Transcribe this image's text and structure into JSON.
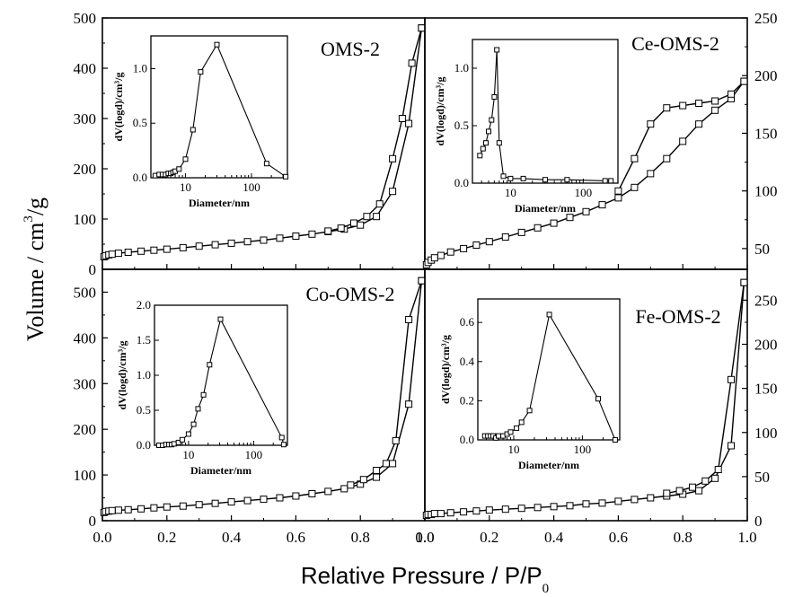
{
  "y_axis_label": {
    "pre": "Volume / cm",
    "sup": "3",
    "post": "/g"
  },
  "x_axis_label": {
    "main": "Relative Pressure / P/P",
    "sub": "0"
  },
  "chart_data": [
    {
      "type": "line",
      "title": "OMS-2",
      "xlim": [
        0,
        1.0
      ],
      "ylim": [
        0,
        500
      ],
      "x_ticks": [
        0.0,
        0.2,
        0.4,
        0.6,
        0.8,
        1.0
      ],
      "y_ticks": [
        0,
        100,
        200,
        300,
        400,
        500
      ],
      "y_axis_side": "left",
      "series": [
        {
          "role": "adsorption",
          "x": [
            0.005,
            0.01,
            0.02,
            0.03,
            0.05,
            0.08,
            0.12,
            0.16,
            0.2,
            0.25,
            0.3,
            0.35,
            0.4,
            0.45,
            0.5,
            0.55,
            0.6,
            0.65,
            0.7,
            0.75,
            0.8,
            0.85,
            0.9,
            0.95,
            0.99
          ],
          "y": [
            25,
            27,
            29,
            30,
            32,
            34,
            36,
            38,
            40,
            43,
            46,
            49,
            52,
            55,
            58,
            62,
            66,
            70,
            75,
            80,
            88,
            105,
            155,
            290,
            480
          ]
        },
        {
          "role": "desorption",
          "x": [
            0.99,
            0.96,
            0.93,
            0.9,
            0.86,
            0.82,
            0.78,
            0.74,
            0.7
          ],
          "y": [
            480,
            410,
            300,
            220,
            130,
            105,
            92,
            82,
            76
          ]
        }
      ],
      "inset": {
        "xlabel": "Diameter/nm",
        "ylabel": "dV(logd)/cm³/g",
        "x_scale": "log",
        "xlim": [
          3,
          350
        ],
        "ylim": [
          0,
          1.3
        ],
        "x_tick_values": [
          10,
          100
        ],
        "x_tick_labels": [
          "10",
          "100"
        ],
        "y_tick_values": [
          0,
          0.5,
          1.0
        ],
        "y_tick_labels": [
          "0.0",
          "0.5",
          "1.0"
        ],
        "x": [
          3.5,
          4,
          4.5,
          5,
          5.5,
          6,
          6.5,
          7,
          8,
          10,
          13,
          17,
          30,
          170,
          330
        ],
        "y": [
          0.02,
          0.03,
          0.03,
          0.03,
          0.04,
          0.04,
          0.05,
          0.06,
          0.08,
          0.17,
          0.44,
          0.97,
          1.22,
          0.13,
          0.01
        ]
      }
    },
    {
      "type": "line",
      "title": "Ce-OMS-2",
      "xlim": [
        0,
        1.0
      ],
      "ylim": [
        32,
        250
      ],
      "x_ticks": [
        0.0,
        0.2,
        0.4,
        0.6,
        0.8,
        1.0
      ],
      "y_ticks": [
        50,
        100,
        150,
        200,
        250
      ],
      "y_axis_side": "right",
      "series": [
        {
          "role": "adsorption",
          "x": [
            0.005,
            0.01,
            0.02,
            0.03,
            0.05,
            0.08,
            0.12,
            0.16,
            0.2,
            0.25,
            0.3,
            0.35,
            0.4,
            0.45,
            0.5,
            0.55,
            0.6,
            0.65,
            0.7,
            0.75,
            0.8,
            0.85,
            0.9,
            0.95,
            0.99
          ],
          "y": [
            36,
            38,
            40,
            42,
            44,
            47,
            50,
            53,
            56,
            60,
            64,
            68,
            72,
            77,
            82,
            88,
            94,
            103,
            115,
            128,
            143,
            158,
            170,
            180,
            195
          ]
        },
        {
          "role": "desorption",
          "x": [
            0.99,
            0.95,
            0.9,
            0.85,
            0.8,
            0.75,
            0.7,
            0.65,
            0.6
          ],
          "y": [
            195,
            184,
            178,
            176,
            174,
            172,
            158,
            128,
            100
          ]
        }
      ],
      "inset": {
        "xlabel": "Diameter/nm",
        "ylabel": "dV(logd)/cm³/g",
        "x_scale": "log",
        "xlim": [
          3,
          300
        ],
        "ylim": [
          0,
          1.25
        ],
        "x_tick_values": [
          10,
          100
        ],
        "x_tick_labels": [
          "10",
          "100"
        ],
        "y_tick_values": [
          0,
          0.5,
          1.0
        ],
        "y_tick_labels": [
          "0.0",
          "0.5",
          "1.0"
        ],
        "x": [
          3.8,
          4.2,
          4.6,
          5,
          5.5,
          6,
          6.5,
          7,
          8,
          10,
          15,
          30,
          60,
          200,
          240
        ],
        "y": [
          0.24,
          0.3,
          0.35,
          0.45,
          0.55,
          0.75,
          1.16,
          0.35,
          0.06,
          0.04,
          0.04,
          0.03,
          0.03,
          0.02,
          0.02
        ]
      }
    },
    {
      "type": "line",
      "title": "Co-OMS-2",
      "xlim": [
        0,
        1.0
      ],
      "ylim": [
        0,
        550
      ],
      "x_ticks": [
        0.0,
        0.2,
        0.4,
        0.6,
        0.8,
        1.0
      ],
      "x_tick_labels": [
        "0.0",
        "0.2",
        "0.4",
        "0.6",
        "0.8",
        "1.0"
      ],
      "y_ticks": [
        0,
        100,
        200,
        300,
        400,
        500
      ],
      "y_axis_side": "left",
      "series": [
        {
          "role": "adsorption",
          "x": [
            0.005,
            0.01,
            0.02,
            0.03,
            0.05,
            0.08,
            0.12,
            0.16,
            0.2,
            0.25,
            0.3,
            0.35,
            0.4,
            0.45,
            0.5,
            0.55,
            0.6,
            0.65,
            0.7,
            0.75,
            0.8,
            0.85,
            0.9,
            0.95,
            0.99
          ],
          "y": [
            18,
            20,
            21,
            22,
            23,
            24,
            26,
            28,
            30,
            32,
            35,
            38,
            41,
            44,
            47,
            50,
            54,
            59,
            64,
            70,
            80,
            95,
            125,
            255,
            525
          ]
        },
        {
          "role": "desorption",
          "x": [
            0.99,
            0.95,
            0.91,
            0.88,
            0.85,
            0.81,
            0.77
          ],
          "y": [
            525,
            440,
            175,
            125,
            110,
            90,
            78
          ]
        }
      ],
      "inset": {
        "xlabel": "Diameter/nm",
        "ylabel": "dV(logd)/cm³/g",
        "x_scale": "log",
        "xlim": [
          3,
          330
        ],
        "ylim": [
          0,
          2.0
        ],
        "x_tick_values": [
          10,
          100
        ],
        "x_tick_labels": [
          "10",
          "100"
        ],
        "y_tick_values": [
          0,
          0.5,
          1.0,
          1.5,
          2.0
        ],
        "y_tick_labels": [
          "0.0",
          "0.5",
          "1.0",
          "1.5",
          "2.0"
        ],
        "x": [
          3.5,
          4,
          4.5,
          5,
          5.5,
          6,
          7,
          8,
          10,
          12,
          14,
          17,
          21,
          31,
          270,
          290
        ],
        "y": [
          0.0,
          0.0,
          0.01,
          0.01,
          0.01,
          0.02,
          0.04,
          0.08,
          0.16,
          0.3,
          0.52,
          0.72,
          1.15,
          1.8,
          0.11,
          0.01
        ]
      }
    },
    {
      "type": "line",
      "title": "Fe-OMS-2",
      "xlim": [
        0,
        1.0
      ],
      "ylim": [
        0,
        285
      ],
      "x_ticks": [
        0.0,
        0.2,
        0.4,
        0.6,
        0.8,
        1.0
      ],
      "x_tick_labels": [
        "0.0",
        "0.2",
        "0.4",
        "0.6",
        "0.8",
        "1.0"
      ],
      "y_ticks": [
        0,
        50,
        100,
        150,
        200,
        250
      ],
      "y_axis_side": "right",
      "series": [
        {
          "role": "adsorption",
          "x": [
            0.005,
            0.01,
            0.02,
            0.03,
            0.05,
            0.08,
            0.12,
            0.16,
            0.2,
            0.25,
            0.3,
            0.35,
            0.4,
            0.45,
            0.5,
            0.55,
            0.6,
            0.65,
            0.7,
            0.75,
            0.8,
            0.85,
            0.9,
            0.95,
            0.99
          ],
          "y": [
            6,
            7,
            7,
            8,
            8,
            9,
            10,
            11,
            12,
            13,
            14,
            15,
            16,
            17,
            19,
            20,
            22,
            24,
            26,
            28,
            30,
            34,
            48,
            85,
            270
          ]
        },
        {
          "role": "desorption",
          "x": [
            0.99,
            0.95,
            0.91,
            0.87,
            0.83,
            0.79,
            0.75
          ],
          "y": [
            270,
            160,
            58,
            45,
            38,
            34,
            31
          ]
        }
      ],
      "inset": {
        "xlabel": "Diameter/nm",
        "ylabel": "dV(logd)/cm³/g",
        "x_scale": "log",
        "xlim": [
          3,
          350
        ],
        "ylim": [
          0,
          0.72
        ],
        "x_tick_values": [
          10,
          100
        ],
        "x_tick_labels": [
          "10",
          "100"
        ],
        "y_tick_values": [
          0,
          0.2,
          0.4,
          0.6
        ],
        "y_tick_labels": [
          "0.0",
          "0.2",
          "0.4",
          "0.6"
        ],
        "x": [
          3.8,
          4.2,
          4.6,
          5,
          5.5,
          6,
          7,
          8,
          9,
          11,
          13,
          17,
          33,
          170,
          300
        ],
        "y": [
          0.02,
          0.02,
          0.02,
          0.02,
          0.01,
          0.02,
          0.02,
          0.03,
          0.04,
          0.06,
          0.09,
          0.15,
          0.64,
          0.21,
          0.0
        ]
      }
    }
  ]
}
